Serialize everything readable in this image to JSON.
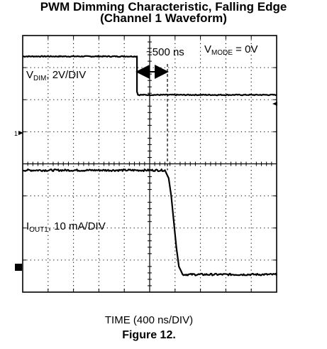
{
  "header": {
    "title_line1": "PWM Dimming Characteristic, Falling Edge",
    "title_line2": "(Channel 1 Waveform)"
  },
  "annotations": {
    "delay_label": "~500 ns",
    "vmode_label": {
      "main": "V",
      "sub": "MODE",
      "rest": " = 0V"
    },
    "vdim_label": {
      "main": "V",
      "sub": "DIM",
      "rest": ", 2V/DIV"
    },
    "iout_label": {
      "main": "I",
      "sub": "OUT1",
      "rest": ", 10 mA/DIV"
    },
    "ch1_marker": "1"
  },
  "footer": {
    "xlabel": "TIME (400 ns/DIV)",
    "caption": "Figure 12."
  },
  "chart_data": {
    "type": "line",
    "grid": true,
    "x_unit": "div",
    "x_scale": "400 ns/DIV",
    "xlim": [
      0,
      10
    ],
    "ylim": [
      0,
      8
    ],
    "series": [
      {
        "trace": "V_DIM",
        "scale": "2V/DIV",
        "x": [
          0,
          4.5,
          4.5,
          4.54,
          10
        ],
        "y": [
          7.35,
          7.35,
          6.25,
          6.15,
          6.15
        ]
      },
      {
        "trace": "I_OUT1",
        "scale": "10 mA/DIV",
        "x": [
          0,
          5.6,
          5.75,
          5.85,
          5.95,
          6.05,
          6.15,
          6.3,
          10
        ],
        "y": [
          3.8,
          3.8,
          3.55,
          3.0,
          2.2,
          1.4,
          0.8,
          0.55,
          0.55
        ]
      }
    ],
    "cursor_x": 5.7,
    "delay_arrow_x": [
      4.5,
      5.7
    ]
  }
}
